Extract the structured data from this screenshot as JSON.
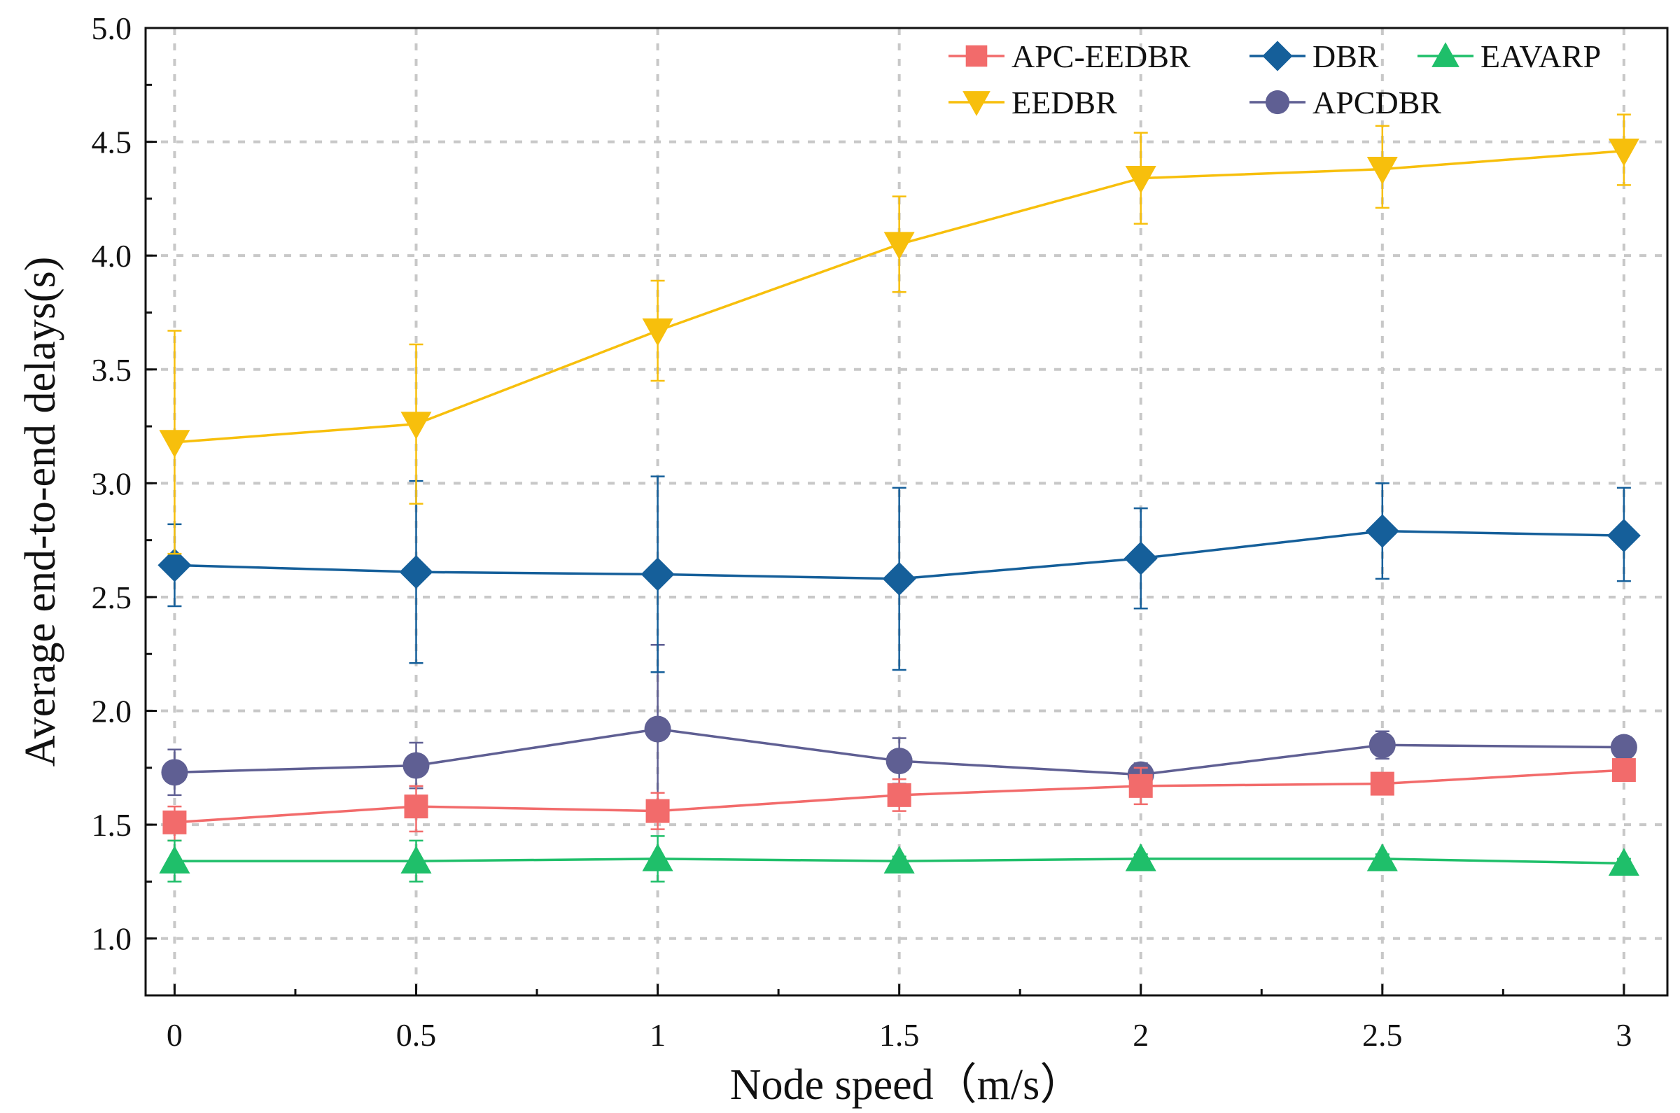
{
  "chart_data": {
    "type": "line",
    "title": "",
    "xlabel": "Node speed（m/s）",
    "ylabel": "Average end-to-end delays(s)",
    "x": [
      0,
      0.5,
      1,
      1.5,
      2,
      2.5,
      3
    ],
    "x_tick_labels": [
      "0",
      "0.5",
      "1",
      "1.5",
      "2",
      "2.5",
      "3"
    ],
    "xlim": [
      -0.06,
      3.09
    ],
    "ylim": [
      0.75,
      5.0
    ],
    "y_ticks": [
      1.0,
      1.5,
      2.0,
      2.5,
      3.0,
      3.5,
      4.0,
      4.5,
      5.0
    ],
    "y_tick_labels": [
      "1.0",
      "1.5",
      "2.0",
      "2.5",
      "3.0",
      "3.5",
      "4.0",
      "4.5",
      "5.0"
    ],
    "grid": true,
    "legend_position": "top-right",
    "series": [
      {
        "name": "APC-EEDBR",
        "color": "#f26b6b",
        "marker": "square",
        "values": [
          1.51,
          1.58,
          1.56,
          1.63,
          1.67,
          1.68,
          1.74
        ],
        "err_low": [
          1.43,
          1.47,
          1.48,
          1.56,
          1.59,
          1.66,
          1.72
        ],
        "err_high": [
          1.58,
          1.67,
          1.64,
          1.7,
          1.75,
          1.7,
          1.76
        ]
      },
      {
        "name": "DBR",
        "color": "#155f9a",
        "marker": "diamond",
        "values": [
          2.64,
          2.61,
          2.6,
          2.58,
          2.67,
          2.79,
          2.77
        ],
        "err_low": [
          2.46,
          2.21,
          2.17,
          2.18,
          2.45,
          2.58,
          2.57
        ],
        "err_high": [
          2.82,
          3.01,
          3.03,
          2.98,
          2.89,
          3.0,
          2.98
        ]
      },
      {
        "name": "EAVARP",
        "color": "#1fbf6a",
        "marker": "triangle-up",
        "values": [
          1.34,
          1.34,
          1.35,
          1.34,
          1.35,
          1.35,
          1.33
        ],
        "err_low": [
          1.25,
          1.25,
          1.25,
          1.32,
          1.33,
          1.33,
          1.31
        ],
        "err_high": [
          1.43,
          1.43,
          1.45,
          1.36,
          1.37,
          1.37,
          1.35
        ]
      },
      {
        "name": "EEDBR",
        "color": "#f7bf0c",
        "marker": "triangle-down",
        "values": [
          3.18,
          3.26,
          3.67,
          4.05,
          4.34,
          4.38,
          4.46
        ],
        "err_low": [
          2.69,
          2.91,
          3.45,
          3.84,
          4.14,
          4.21,
          4.31
        ],
        "err_high": [
          3.67,
          3.61,
          3.89,
          4.26,
          4.54,
          4.57,
          4.62
        ]
      },
      {
        "name": "APCDBR",
        "color": "#5f5f93",
        "marker": "circle",
        "values": [
          1.73,
          1.76,
          1.92,
          1.78,
          1.72,
          1.85,
          1.84
        ],
        "err_low": [
          1.63,
          1.66,
          1.55,
          1.68,
          1.67,
          1.79,
          1.8
        ],
        "err_high": [
          1.83,
          1.86,
          2.29,
          1.88,
          1.77,
          1.91,
          1.88
        ]
      }
    ]
  }
}
